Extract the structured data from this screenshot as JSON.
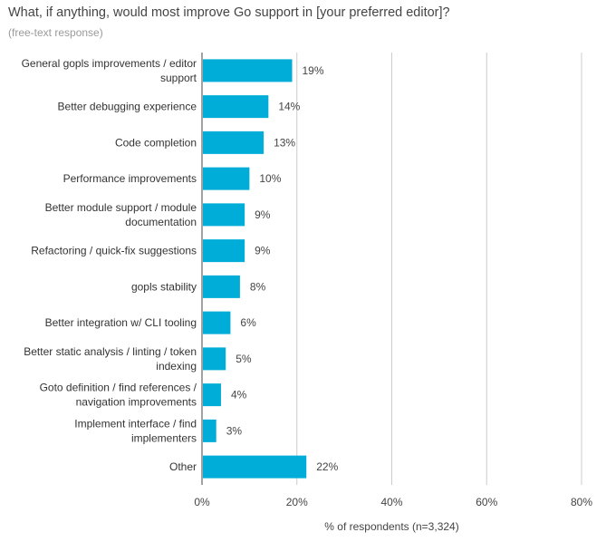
{
  "title": "What, if anything, would most improve Go support in [your preferred editor]?",
  "subtitle": "(free-text response)",
  "chart_data": {
    "type": "bar",
    "orientation": "horizontal",
    "categories": [
      "General gopls improvements / editor support",
      "Better debugging experience",
      "Code completion",
      "Performance improvements",
      "Better module support / module documentation",
      "Refactoring / quick-fix suggestions",
      "gopls stability",
      "Better integration w/ CLI tooling",
      "Better static analysis / linting / token indexing",
      "Goto definition / find references / navigation improvements",
      "Implement interface / find implementers",
      "Other"
    ],
    "category_lines": [
      [
        "General gopls improvements / editor",
        "support"
      ],
      [
        "Better debugging experience"
      ],
      [
        "Code completion"
      ],
      [
        "Performance improvements"
      ],
      [
        "Better module support / module",
        "documentation"
      ],
      [
        "Refactoring / quick-fix suggestions"
      ],
      [
        "gopls stability"
      ],
      [
        "Better integration w/ CLI tooling"
      ],
      [
        "Better static analysis / linting / token",
        "indexing"
      ],
      [
        "Goto definition / find references /",
        "navigation improvements"
      ],
      [
        "Implement interface / find",
        "implementers"
      ],
      [
        "Other"
      ]
    ],
    "values": [
      19,
      14,
      13,
      10,
      9,
      9,
      8,
      6,
      5,
      4,
      3,
      22
    ],
    "value_labels": [
      "19%",
      "14%",
      "13%",
      "10%",
      "9%",
      "9%",
      "8%",
      "6%",
      "5%",
      "4%",
      "3%",
      "22%"
    ],
    "xlabel": "% of respondents (n=3,324)",
    "ylabel": "",
    "xlim": [
      0,
      80
    ],
    "xticks": [
      0,
      20,
      40,
      60,
      80
    ],
    "xtick_labels": [
      "0%",
      "20%",
      "40%",
      "60%",
      "80%"
    ],
    "bar_color": "#00ADD8",
    "grid": true
  }
}
